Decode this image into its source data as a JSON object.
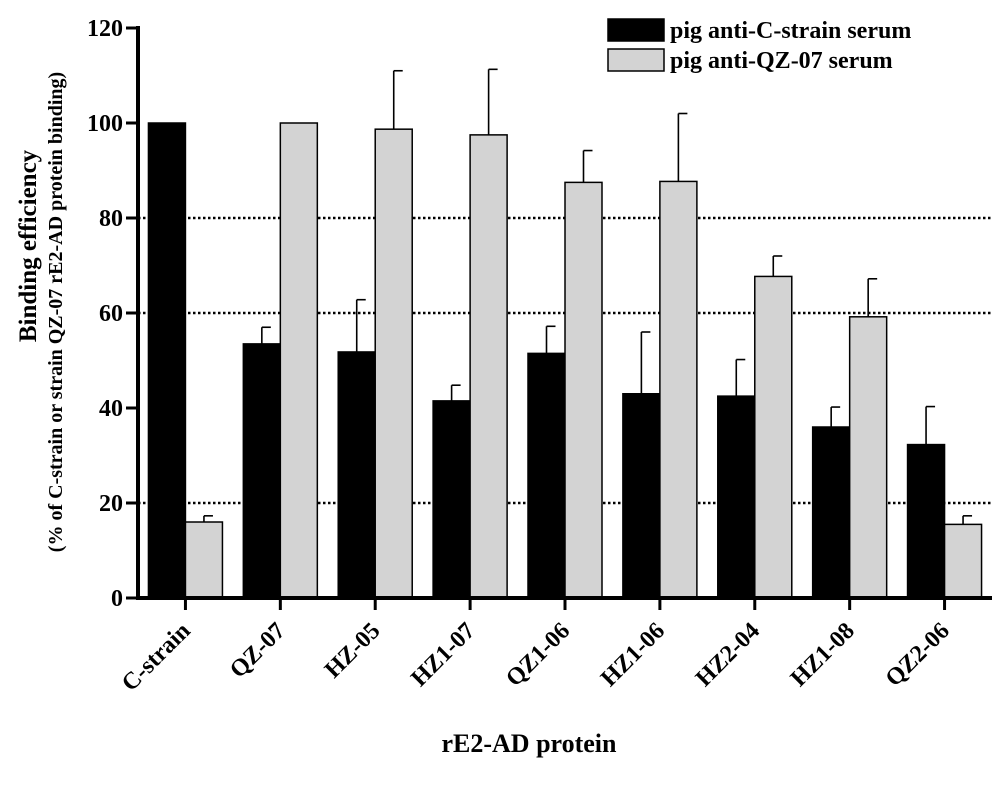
{
  "chart_data": {
    "type": "bar",
    "title": "",
    "xlabel": "rE2-AD protein",
    "ylabel": "Binding efficiency",
    "ylabel_sub": "(% of C-strain or strain QZ-07 rE2-AD protein binding)",
    "categories": [
      "C-strain",
      "QZ-07",
      "HZ-05",
      "HZ1-07",
      "QZ1-06",
      "HZ1-06",
      "HZ2-04",
      "HZ1-08",
      "QZ2-06"
    ],
    "series": [
      {
        "name": "pig anti-C-strain serum",
        "color": "#000000",
        "values": [
          100,
          53.5,
          51.8,
          41.5,
          51.5,
          43,
          42.5,
          36,
          32.3
        ],
        "errors": [
          0,
          3.5,
          11,
          3.3,
          5.7,
          13,
          7.7,
          4.2,
          8
        ]
      },
      {
        "name": "pig anti-QZ-07 serum",
        "color": "#d3d3d3",
        "values": [
          16,
          100,
          98.7,
          97.5,
          87.5,
          87.7,
          67.7,
          59.2,
          15.5
        ],
        "errors": [
          1.3,
          0,
          12.3,
          13.8,
          6.7,
          14.3,
          4.3,
          8,
          1.8
        ]
      }
    ],
    "ylim": [
      0,
      120
    ],
    "yticks": [
      0,
      20,
      40,
      60,
      80,
      100,
      120
    ],
    "reference_lines": [
      20,
      60,
      80
    ],
    "legend_position": "top-right",
    "grid": false
  }
}
